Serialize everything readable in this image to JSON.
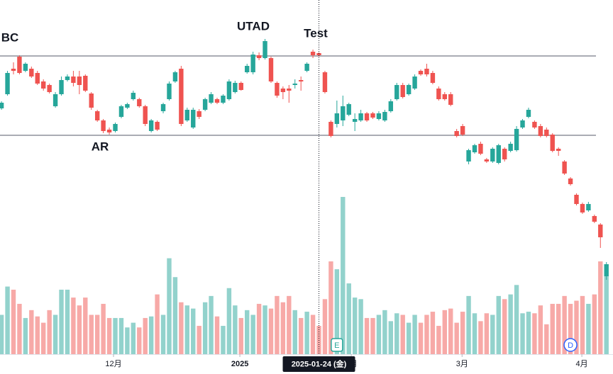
{
  "chart_data": {
    "type": "candlestick",
    "open": [
      247,
      267,
      303,
      320,
      300,
      303,
      297,
      285,
      280,
      250,
      267,
      287,
      292,
      292,
      293,
      268,
      243,
      230,
      217,
      215,
      235,
      248,
      260,
      260,
      250,
      215,
      228,
      243,
      260,
      285,
      303,
      230,
      220,
      243,
      245,
      255,
      260,
      255,
      260,
      270,
      283,
      298,
      298,
      322,
      318,
      318,
      283,
      275,
      275,
      280,
      287,
      300,
      327,
      325,
      298,
      228,
      225,
      230,
      238,
      228,
      230,
      240,
      240,
      232,
      230,
      243,
      260,
      280,
      267,
      275,
      300,
      303,
      297,
      275,
      267,
      267,
      215,
      222,
      172,
      185,
      197,
      175,
      172,
      170,
      190,
      187,
      188,
      220,
      235,
      228,
      222,
      217,
      210,
      190,
      172,
      148,
      125,
      112,
      103,
      95,
      83,
      10
    ],
    "high": [
      257,
      300,
      312,
      322,
      312,
      306,
      300,
      288,
      282,
      270,
      292,
      295,
      300,
      300,
      295,
      270,
      245,
      232,
      220,
      227,
      252,
      255,
      272,
      262,
      252,
      232,
      230,
      255,
      285,
      300,
      307,
      248,
      248,
      246,
      262,
      270,
      262,
      267,
      288,
      286,
      285,
      310,
      327,
      326,
      345,
      320,
      285,
      278,
      280,
      288,
      292,
      312,
      330,
      326,
      300,
      230,
      258,
      265,
      255,
      240,
      245,
      242,
      242,
      243,
      245,
      260,
      283,
      283,
      282,
      295,
      302,
      310,
      300,
      278,
      270,
      270,
      218,
      225,
      190,
      197,
      200,
      177,
      192,
      197,
      192,
      200,
      222,
      232,
      248,
      230,
      225,
      220,
      212,
      192,
      174,
      150,
      127,
      114,
      115,
      97,
      85,
      30
    ],
    "low": [
      245,
      265,
      295,
      295,
      298,
      290,
      280,
      272,
      268,
      248,
      265,
      285,
      278,
      267,
      270,
      245,
      228,
      212,
      210,
      213,
      233,
      246,
      258,
      248,
      222,
      213,
      215,
      240,
      258,
      283,
      222,
      228,
      218,
      232,
      243,
      253,
      253,
      253,
      258,
      268,
      272,
      296,
      295,
      315,
      316,
      283,
      262,
      260,
      255,
      275,
      272,
      298,
      318,
      320,
      268,
      206,
      220,
      222,
      236,
      215,
      228,
      228,
      232,
      230,
      228,
      241,
      258,
      261,
      265,
      273,
      293,
      292,
      281,
      258,
      258,
      250,
      206,
      208,
      168,
      183,
      181,
      170,
      170,
      168,
      172,
      185,
      186,
      218,
      233,
      218,
      206,
      206,
      185,
      180,
      153,
      138,
      110,
      98,
      101,
      85,
      50,
      5
    ],
    "close": [
      255,
      297,
      300,
      297,
      310,
      292,
      282,
      275,
      270,
      267,
      287,
      292,
      283,
      280,
      272,
      248,
      230,
      215,
      213,
      225,
      250,
      253,
      269,
      250,
      225,
      230,
      217,
      253,
      282,
      298,
      225,
      245,
      245,
      235,
      260,
      267,
      255,
      265,
      285,
      283,
      273,
      307,
      323,
      318,
      342,
      285,
      265,
      270,
      272,
      282,
      285,
      310,
      322,
      322,
      270,
      208,
      240,
      250,
      253,
      232,
      240,
      230,
      234,
      240,
      242,
      257,
      280,
      263,
      280,
      292,
      295,
      295,
      283,
      260,
      260,
      252,
      208,
      210,
      188,
      195,
      183,
      172,
      190,
      195,
      175,
      197,
      218,
      230,
      245,
      220,
      208,
      208,
      187,
      187,
      155,
      140,
      112,
      100,
      112,
      87,
      65,
      27
    ],
    "volume": [
      25,
      43,
      41,
      32,
      23,
      28,
      24,
      20,
      28,
      25,
      41,
      41,
      36,
      31,
      36,
      25,
      25,
      32,
      23,
      23,
      23,
      17,
      20,
      17,
      23,
      24,
      38,
      25,
      61,
      49,
      33,
      31,
      29,
      18,
      33,
      37,
      24,
      18,
      42,
      31,
      23,
      28,
      25,
      32,
      31,
      29,
      37,
      33,
      37,
      28,
      23,
      27,
      25,
      18,
      35,
      59,
      54,
      100,
      45,
      36,
      35,
      23,
      23,
      25,
      28,
      21,
      26,
      25,
      20,
      25,
      20,
      25,
      27,
      18,
      28,
      29,
      20,
      27,
      37,
      26,
      21,
      26,
      25,
      37,
      35,
      38,
      44,
      26,
      27,
      26,
      31,
      19,
      32,
      32,
      37,
      32,
      34,
      37,
      32,
      38,
      59,
      50
    ],
    "xlim": [
      -0.25,
      102.1
    ],
    "ylim": [
      0,
      400
    ],
    "volume_lim": [
      0,
      100
    ],
    "xticks": [
      {
        "value": 18.7,
        "label": "12月"
      },
      {
        "value": 39.8,
        "label": "2025"
      },
      {
        "value": 58.4,
        "label": "2月"
      },
      {
        "value": 76.9,
        "label": "3月"
      },
      {
        "value": 96.9,
        "label": "4月"
      }
    ],
    "crosshair": {
      "value": 53,
      "label": "2025-01-24 (金)"
    },
    "levels": [
      321,
      209
    ],
    "annotations": [
      "BC",
      "AR",
      "UTAD",
      "Test"
    ],
    "events": [
      {
        "index": 56,
        "label": "E"
      },
      {
        "index": 95,
        "label": "D"
      }
    ],
    "up_color": "#26a69a",
    "down_color": "#ef5350",
    "volume_up_color": "rgba(38,166,154,0.5)",
    "volume_down_color": "rgba(239,83,80,0.5)"
  }
}
